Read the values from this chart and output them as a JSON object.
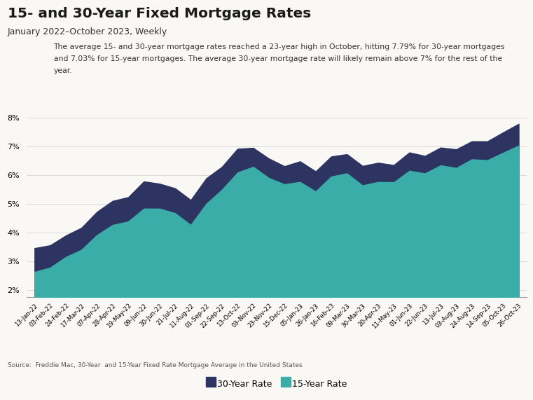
{
  "title": "15- and 30-Year Fixed Mortgage Rates",
  "subtitle": "January 2022–October 2023, Weekly",
  "annotation_line1": "The average 15- and 30-year mortgage rates reached a 23-year high in October, hitting 7.79% for 30-year mortgages",
  "annotation_line2": "and 7.03% for 15-year mortgages. The average 30-year mortgage rate will likely remain above 7% for the rest of the",
  "annotation_line3": "year.",
  "source": "Source:  Freddie Mac, 30-Year  and 15-Year Fixed Rate Mortgage Average in the United States",
  "legend_30yr": "30-Year Rate",
  "legend_15yr": "15-Year Rate",
  "color_30yr": "#2e3461",
  "color_15yr": "#3aada8",
  "background_color": "#f9f8f4",
  "ylim": [
    1.75,
    8.5
  ],
  "yticks": [
    2,
    3,
    4,
    5,
    6,
    7,
    8
  ],
  "dates": [
    "13-Jan-22",
    "03-Feb-22",
    "24-Feb-22",
    "17-Mar-22",
    "07-Apr-22",
    "28-Apr-22",
    "19-May-22",
    "09-Jun-22",
    "30-Jun-22",
    "21-Jul-22",
    "11-Aug-22",
    "01-Sep-22",
    "22-Sep-22",
    "13-Oct-22",
    "03-Nov-22",
    "23-Nov-22",
    "15-Dec-22",
    "05-Jan-23",
    "26-Jan-23",
    "16-Feb-23",
    "09-Mar-23",
    "30-Mar-23",
    "20-Apr-23",
    "11-May-23",
    "01-Jun-23",
    "22-Jun-23",
    "13-Jul-23",
    "03-Aug-23",
    "24-Aug-23",
    "14-Sep-23",
    "05-Oct-23",
    "26-Oct-23"
  ],
  "rate_30yr": [
    3.45,
    3.55,
    3.89,
    4.16,
    4.72,
    5.1,
    5.23,
    5.78,
    5.7,
    5.54,
    5.13,
    5.89,
    6.29,
    6.92,
    6.95,
    6.58,
    6.31,
    6.48,
    6.13,
    6.65,
    6.73,
    6.32,
    6.43,
    6.35,
    6.79,
    6.67,
    6.96,
    6.9,
    7.18,
    7.18,
    7.49,
    7.79
  ],
  "rate_15yr": [
    2.62,
    2.77,
    3.14,
    3.39,
    3.91,
    4.26,
    4.38,
    4.83,
    4.83,
    4.67,
    4.26,
    5.0,
    5.49,
    6.09,
    6.29,
    5.9,
    5.68,
    5.76,
    5.43,
    5.95,
    6.06,
    5.64,
    5.76,
    5.75,
    6.15,
    6.06,
    6.34,
    6.25,
    6.55,
    6.52,
    6.78,
    7.03
  ]
}
